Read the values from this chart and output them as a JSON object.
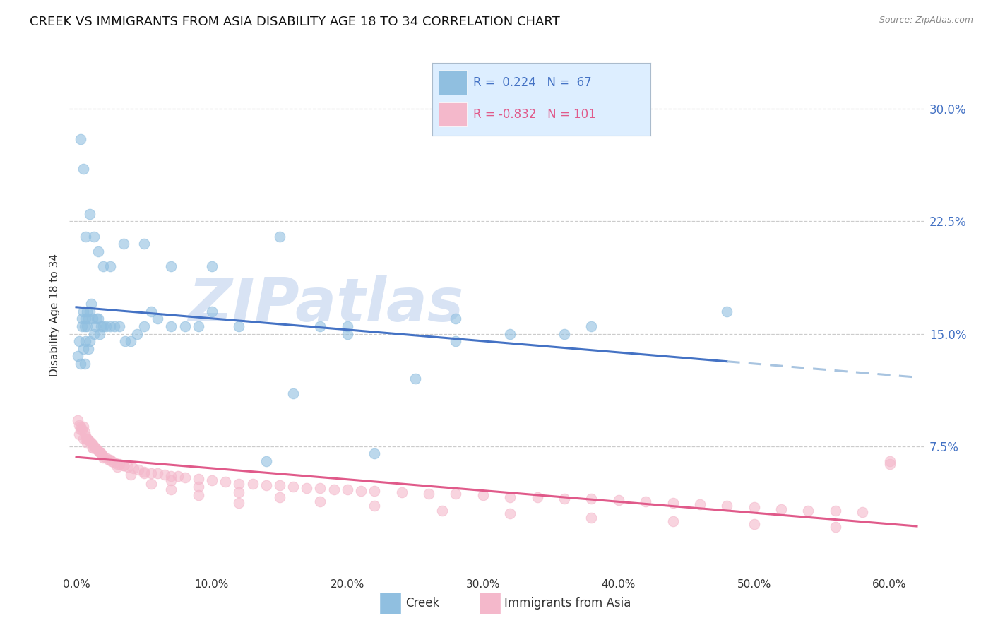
{
  "title": "CREEK VS IMMIGRANTS FROM ASIA DISABILITY AGE 18 TO 34 CORRELATION CHART",
  "source": "Source: ZipAtlas.com",
  "xlabel_ticks": [
    "0.0%",
    "10.0%",
    "20.0%",
    "30.0%",
    "40.0%",
    "50.0%",
    "60.0%"
  ],
  "xlabel_vals": [
    0.0,
    0.1,
    0.2,
    0.3,
    0.4,
    0.5,
    0.6
  ],
  "ylabel": "Disability Age 18 to 34",
  "ylabel_ticks": [
    "7.5%",
    "15.0%",
    "22.5%",
    "30.0%"
  ],
  "ylabel_vals": [
    0.075,
    0.15,
    0.225,
    0.3
  ],
  "xlim": [
    -0.005,
    0.625
  ],
  "ylim": [
    -0.01,
    0.335
  ],
  "creek_R": 0.224,
  "creek_N": 67,
  "immigrants_R": -0.832,
  "immigrants_N": 101,
  "creek_color": "#90bfe0",
  "immigrants_color": "#f4b8cb",
  "creek_line_color": "#4472c4",
  "immigrants_line_color": "#e05a8a",
  "dashed_line_color": "#a8c4e0",
  "legend_box_color": "#ddeeff",
  "legend_text_blue": "#4472c4",
  "legend_text_pink": "#e05a8a",
  "right_tick_color": "#4472c4",
  "watermark_color": "#c8d8f0",
  "background_color": "#ffffff",
  "title_fontsize": 13,
  "axis_label_fontsize": 11,
  "tick_fontsize": 11,
  "creek_x": [
    0.001,
    0.002,
    0.003,
    0.004,
    0.004,
    0.005,
    0.005,
    0.006,
    0.006,
    0.007,
    0.007,
    0.008,
    0.008,
    0.009,
    0.009,
    0.01,
    0.01,
    0.011,
    0.012,
    0.013,
    0.014,
    0.015,
    0.016,
    0.017,
    0.018,
    0.02,
    0.022,
    0.025,
    0.028,
    0.032,
    0.036,
    0.04,
    0.045,
    0.05,
    0.055,
    0.06,
    0.07,
    0.08,
    0.09,
    0.1,
    0.12,
    0.14,
    0.16,
    0.18,
    0.2,
    0.22,
    0.25,
    0.28,
    0.32,
    0.36,
    0.003,
    0.005,
    0.007,
    0.01,
    0.013,
    0.016,
    0.02,
    0.025,
    0.035,
    0.05,
    0.07,
    0.1,
    0.15,
    0.2,
    0.28,
    0.38,
    0.48
  ],
  "creek_y": [
    0.135,
    0.145,
    0.13,
    0.155,
    0.16,
    0.14,
    0.165,
    0.13,
    0.155,
    0.16,
    0.145,
    0.155,
    0.165,
    0.14,
    0.16,
    0.165,
    0.145,
    0.17,
    0.16,
    0.15,
    0.155,
    0.16,
    0.16,
    0.15,
    0.155,
    0.155,
    0.155,
    0.155,
    0.155,
    0.155,
    0.145,
    0.145,
    0.15,
    0.155,
    0.165,
    0.16,
    0.155,
    0.155,
    0.155,
    0.165,
    0.155,
    0.065,
    0.11,
    0.155,
    0.15,
    0.07,
    0.12,
    0.16,
    0.15,
    0.15,
    0.28,
    0.26,
    0.215,
    0.23,
    0.215,
    0.205,
    0.195,
    0.195,
    0.21,
    0.21,
    0.195,
    0.195,
    0.215,
    0.155,
    0.145,
    0.155,
    0.165
  ],
  "immigrants_x": [
    0.001,
    0.002,
    0.003,
    0.004,
    0.005,
    0.006,
    0.007,
    0.008,
    0.009,
    0.01,
    0.011,
    0.012,
    0.013,
    0.014,
    0.015,
    0.016,
    0.017,
    0.018,
    0.019,
    0.02,
    0.022,
    0.024,
    0.026,
    0.028,
    0.03,
    0.032,
    0.035,
    0.038,
    0.042,
    0.046,
    0.05,
    0.055,
    0.06,
    0.065,
    0.07,
    0.075,
    0.08,
    0.09,
    0.1,
    0.11,
    0.12,
    0.13,
    0.14,
    0.15,
    0.16,
    0.17,
    0.18,
    0.19,
    0.2,
    0.21,
    0.22,
    0.24,
    0.26,
    0.28,
    0.3,
    0.32,
    0.34,
    0.36,
    0.38,
    0.4,
    0.42,
    0.44,
    0.46,
    0.48,
    0.5,
    0.52,
    0.54,
    0.56,
    0.58,
    0.6,
    0.002,
    0.005,
    0.008,
    0.012,
    0.018,
    0.025,
    0.035,
    0.05,
    0.07,
    0.09,
    0.12,
    0.15,
    0.18,
    0.22,
    0.27,
    0.32,
    0.38,
    0.44,
    0.5,
    0.56,
    0.003,
    0.007,
    0.012,
    0.02,
    0.03,
    0.04,
    0.055,
    0.07,
    0.09,
    0.12,
    0.6
  ],
  "immigrants_y": [
    0.092,
    0.089,
    0.088,
    0.086,
    0.088,
    0.084,
    0.082,
    0.08,
    0.079,
    0.078,
    0.077,
    0.076,
    0.075,
    0.074,
    0.073,
    0.072,
    0.071,
    0.07,
    0.069,
    0.068,
    0.067,
    0.066,
    0.065,
    0.064,
    0.063,
    0.063,
    0.062,
    0.061,
    0.06,
    0.059,
    0.058,
    0.057,
    0.057,
    0.056,
    0.055,
    0.055,
    0.054,
    0.053,
    0.052,
    0.051,
    0.05,
    0.05,
    0.049,
    0.049,
    0.048,
    0.047,
    0.047,
    0.046,
    0.046,
    0.045,
    0.045,
    0.044,
    0.043,
    0.043,
    0.042,
    0.041,
    0.041,
    0.04,
    0.04,
    0.039,
    0.038,
    0.037,
    0.036,
    0.035,
    0.034,
    0.033,
    0.032,
    0.032,
    0.031,
    0.065,
    0.083,
    0.08,
    0.077,
    0.074,
    0.07,
    0.066,
    0.062,
    0.057,
    0.052,
    0.048,
    0.044,
    0.041,
    0.038,
    0.035,
    0.032,
    0.03,
    0.027,
    0.025,
    0.023,
    0.021,
    0.086,
    0.08,
    0.074,
    0.067,
    0.061,
    0.056,
    0.05,
    0.046,
    0.042,
    0.037,
    0.063
  ]
}
